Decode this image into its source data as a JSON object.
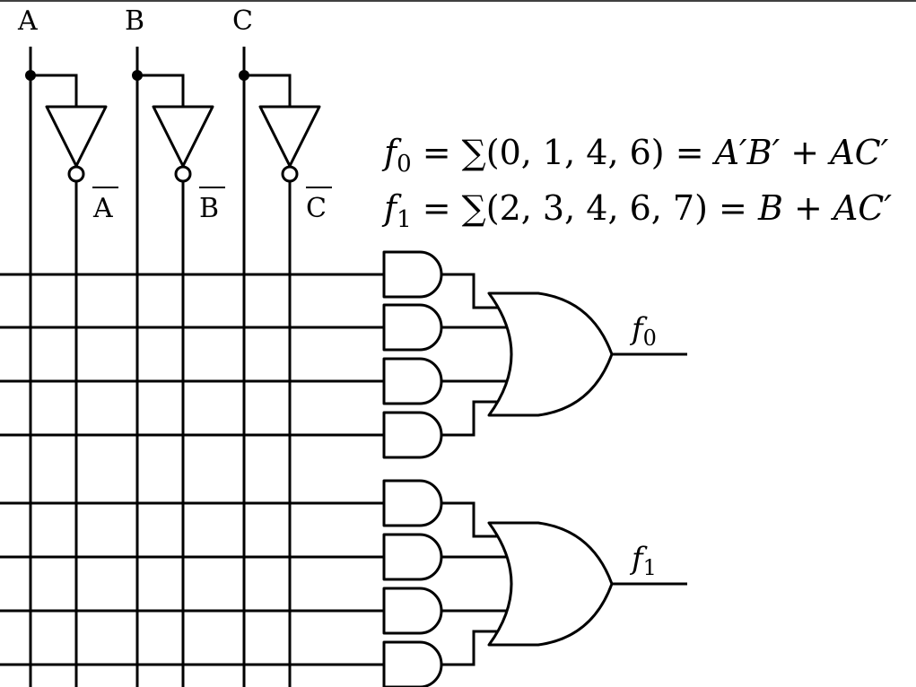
{
  "inputs": [
    {
      "name": "A",
      "complement": "A"
    },
    {
      "name": "B",
      "complement": "B"
    },
    {
      "name": "C",
      "complement": "C"
    }
  ],
  "equations": {
    "f0": {
      "lhs_var": "f",
      "lhs_sub": "0",
      "sigma": "∑",
      "minterms": "(0, 1, 4, 6)",
      "rhs": "A′B′ + AC′"
    },
    "f1": {
      "lhs_var": "f",
      "lhs_sub": "1",
      "sigma": "∑",
      "minterms": "(2, 3, 4, 6, 7)",
      "rhs": "B + AC′"
    }
  },
  "outputs": [
    {
      "var": "f",
      "sub": "0"
    },
    {
      "var": "f",
      "sub": "1"
    }
  ]
}
